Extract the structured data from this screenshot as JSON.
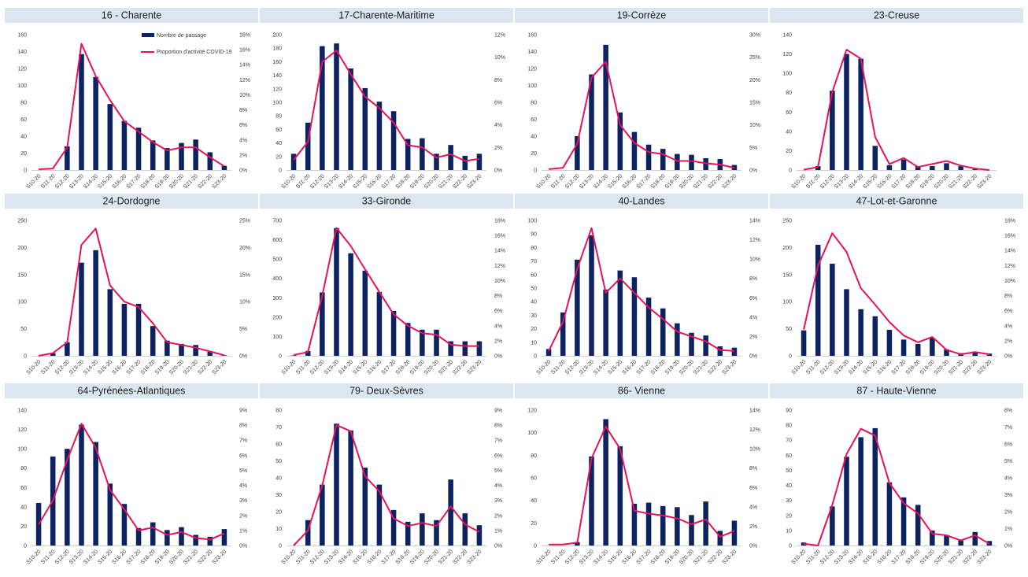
{
  "legend": {
    "bar_label": "Nombre de passage",
    "line_label": "Proportion d'activité COVID-19"
  },
  "colors": {
    "bar": "#0d2260",
    "line": "#e8115b",
    "title_bg": "#dce6f0"
  },
  "chart_data": [
    {
      "type": "bar",
      "title": "16 - Charente",
      "categories": [
        "S10-20",
        "S11-20",
        "S12-20",
        "S13-20",
        "S14-20",
        "S15-20",
        "S16-20",
        "S17-20",
        "S18-20",
        "S19-20",
        "S20-20",
        "S21-20",
        "S22-20",
        "S23-20"
      ],
      "series": [
        {
          "name": "Nombre de passage",
          "type": "bar",
          "axis": "left",
          "values": [
            0,
            0,
            28,
            137,
            110,
            78,
            58,
            50,
            35,
            26,
            32,
            36,
            21,
            5
          ]
        },
        {
          "name": "Proportion d'activité COVID-19",
          "type": "line",
          "axis": "right",
          "values": [
            0.1,
            0.2,
            3.0,
            16.8,
            12.5,
            9.3,
            6.5,
            5.1,
            3.7,
            2.6,
            3.0,
            3.0,
            1.7,
            0.5
          ]
        }
      ],
      "left_axis": {
        "min": 0,
        "max": 160,
        "ticks": [
          0,
          20,
          40,
          60,
          80,
          100,
          120,
          140,
          160
        ]
      },
      "right_axis": {
        "min": 0,
        "max": 18,
        "ticks": [
          0,
          2,
          4,
          6,
          8,
          10,
          12,
          14,
          16,
          18
        ],
        "suffix": "%"
      },
      "show_legend": true
    },
    {
      "type": "bar",
      "title": "17-Charente-Maritime",
      "categories": [
        "S10-20",
        "S11-20",
        "S12-20",
        "S13-20",
        "S14-20",
        "S15-20",
        "S16-20",
        "S17-20",
        "S18-20",
        "S19-20",
        "S20-20",
        "S21-20",
        "S22-20",
        "S23-20"
      ],
      "series": [
        {
          "name": "Nombre de passage",
          "type": "bar",
          "axis": "left",
          "values": [
            24,
            70,
            183,
            187,
            150,
            121,
            101,
            87,
            46,
            47,
            24,
            37,
            21,
            24
          ]
        },
        {
          "name": "Proportion d'activité COVID-19",
          "type": "line",
          "axis": "right",
          "values": [
            0.9,
            2.5,
            9.6,
            10.6,
            8.5,
            6.5,
            5.5,
            4.2,
            2.2,
            2.0,
            1.1,
            1.4,
            0.8,
            1.0
          ]
        }
      ],
      "left_axis": {
        "min": 0,
        "max": 200,
        "ticks": [
          0,
          20,
          40,
          60,
          80,
          100,
          120,
          140,
          160,
          180,
          200
        ]
      },
      "right_axis": {
        "min": 0,
        "max": 12,
        "ticks": [
          0,
          2,
          4,
          6,
          8,
          10,
          12
        ],
        "suffix": "%"
      },
      "show_legend": false
    },
    {
      "type": "bar",
      "title": "19-Corrèze",
      "categories": [
        "S10-20",
        "S11-20",
        "S12-20",
        "S13-20",
        "S14-20",
        "S15-20",
        "S16-20",
        "S17-20",
        "S18-20",
        "S19-20",
        "S20-20",
        "S21-20",
        "S22-20",
        "S23-20"
      ],
      "series": [
        {
          "name": "Nombre de passage",
          "type": "bar",
          "axis": "left",
          "values": [
            0,
            0,
            40,
            113,
            148,
            68,
            45,
            30,
            25,
            19,
            18,
            14,
            13,
            6
          ]
        },
        {
          "name": "Proportion d'activité COVID-19",
          "type": "line",
          "axis": "right",
          "values": [
            0.2,
            0.5,
            5.8,
            20.5,
            24.0,
            10.0,
            6.0,
            4.0,
            3.5,
            2.0,
            2.0,
            1.5,
            1.2,
            0.5
          ]
        }
      ],
      "left_axis": {
        "min": 0,
        "max": 160,
        "ticks": [
          0,
          20,
          40,
          60,
          80,
          100,
          120,
          140,
          160
        ]
      },
      "right_axis": {
        "min": 0,
        "max": 30,
        "ticks": [
          0,
          5,
          10,
          15,
          20,
          25,
          30
        ],
        "suffix": "%"
      },
      "show_legend": false
    },
    {
      "type": "bar",
      "title": "23-Creuse",
      "categories": [
        "S10-20",
        "S11-20",
        "S12-20",
        "S13-20",
        "S14-20",
        "S15-20",
        "S16-20",
        "S17-20",
        "S18-20",
        "S19-20",
        "S20-20",
        "S21-20",
        "S22-20",
        "S23-20"
      ],
      "series": [
        {
          "name": "Nombre de passage",
          "type": "bar",
          "axis": "left",
          "values": [
            0,
            4,
            82,
            120,
            115,
            25,
            5,
            11,
            4,
            4,
            7,
            4,
            1,
            0
          ]
        },
        {
          "name": "Proportion d'activité COVID-19",
          "type": "line",
          "axis": "right",
          "values": [
            0.1,
            1.0,
            26.0,
            40.0,
            37.0,
            11.0,
            2.0,
            4.0,
            1.0,
            2.0,
            3.0,
            1.5,
            0.5,
            0.0
          ]
        }
      ],
      "left_axis": {
        "min": 0,
        "max": 140,
        "ticks": [
          0,
          20,
          40,
          60,
          80,
          100,
          120,
          140
        ]
      },
      "right_axis": {
        "min": 0,
        "max": 45,
        "ticks": [],
        "suffix": "%"
      },
      "show_legend": false
    },
    {
      "type": "bar",
      "title": "24-Dordogne",
      "categories": [
        "S10-20",
        "S11-20",
        "S12-20",
        "S13-20",
        "S14-20",
        "S15-20",
        "S16-20",
        "S17-20",
        "S18-20",
        "S19-20",
        "S20-20",
        "S21-20",
        "S22-20",
        "S23-20"
      ],
      "series": [
        {
          "name": "Nombre de passage",
          "type": "bar",
          "axis": "left",
          "values": [
            0,
            5,
            25,
            172,
            195,
            123,
            96,
            96,
            55,
            28,
            22,
            20,
            8,
            1
          ]
        },
        {
          "name": "Proportion d'activité COVID-19",
          "type": "line",
          "axis": "right",
          "values": [
            0.0,
            0.5,
            2.5,
            20.5,
            23.5,
            13.0,
            10.0,
            9.0,
            6.0,
            2.5,
            2.0,
            1.5,
            0.8,
            0.1
          ]
        }
      ],
      "left_axis": {
        "min": 0,
        "max": 250,
        "ticks": [
          0,
          50,
          100,
          150,
          200,
          250
        ]
      },
      "right_axis": {
        "min": 0,
        "max": 25,
        "ticks": [
          0,
          5,
          10,
          15,
          20,
          25
        ],
        "suffix": "%"
      },
      "show_legend": false
    },
    {
      "type": "bar",
      "title": "33-Gironde",
      "categories": [
        "S10-20",
        "S11-20",
        "S12-20",
        "S13-20",
        "S14-20",
        "S15-20",
        "S16-20",
        "S17-20",
        "S18-20",
        "S19-20",
        "S20-20",
        "S21-20",
        "S22-20",
        "S23-20"
      ],
      "series": [
        {
          "name": "Nombre de passage",
          "type": "bar",
          "axis": "left",
          "values": [
            2,
            25,
            328,
            660,
            530,
            440,
            330,
            232,
            170,
            135,
            135,
            75,
            75,
            75
          ]
        },
        {
          "name": "Proportion d'activité COVID-19",
          "type": "line",
          "axis": "right",
          "values": [
            0.1,
            0.5,
            8.0,
            17.0,
            14.6,
            11.5,
            8.5,
            5.5,
            4.0,
            3.0,
            2.8,
            1.5,
            1.3,
            1.3
          ]
        }
      ],
      "left_axis": {
        "min": 0,
        "max": 700,
        "ticks": [
          0,
          100,
          200,
          300,
          400,
          500,
          600,
          700
        ]
      },
      "right_axis": {
        "min": 0,
        "max": 18,
        "ticks": [
          0,
          2,
          4,
          6,
          8,
          10,
          12,
          14,
          16,
          18
        ],
        "suffix": "%"
      },
      "show_legend": false
    },
    {
      "type": "bar",
      "title": "40-Landes",
      "categories": [
        "S10-20",
        "S11-20",
        "S12-20",
        "S13-20",
        "S14-20",
        "S15-20",
        "S16-20",
        "S17-20",
        "S18-20",
        "S19-20",
        "S20-20",
        "S21-20",
        "S22-20",
        "S23-20"
      ],
      "series": [
        {
          "name": "Nombre de passage",
          "type": "bar",
          "axis": "left",
          "values": [
            5,
            32,
            71,
            89,
            49,
            63,
            58,
            43,
            35,
            24,
            17,
            15,
            7,
            6
          ]
        },
        {
          "name": "Proportion d'activité COVID-19",
          "type": "line",
          "axis": "right",
          "values": [
            0.5,
            3.5,
            9.0,
            13.2,
            6.5,
            8.0,
            6.5,
            5.0,
            3.8,
            2.5,
            2.0,
            1.5,
            0.6,
            0.5
          ]
        }
      ],
      "left_axis": {
        "min": 0,
        "max": 100,
        "ticks": [
          0,
          10,
          20,
          30,
          40,
          50,
          60,
          70,
          80,
          90,
          100
        ]
      },
      "right_axis": {
        "min": 0,
        "max": 14,
        "ticks": [
          0,
          2,
          4,
          6,
          8,
          10,
          12,
          14
        ],
        "suffix": "%"
      },
      "show_legend": false
    },
    {
      "type": "bar",
      "title": "47-Lot-et-Garonne",
      "categories": [
        "S10-20",
        "S11-20",
        "S12-20",
        "S13-20",
        "S14-20",
        "S15-20",
        "S16-20",
        "S17-20",
        "S18-20",
        "S19-20",
        "S20-20",
        "S21-20",
        "S22-20",
        "S23-20"
      ],
      "series": [
        {
          "name": "Nombre de passage",
          "type": "bar",
          "axis": "left",
          "values": [
            47,
            205,
            170,
            123,
            86,
            73,
            48,
            30,
            22,
            33,
            12,
            5,
            6,
            4
          ]
        },
        {
          "name": "Proportion d'activité COVID-19",
          "type": "line",
          "axis": "right",
          "values": [
            3.5,
            12.0,
            16.3,
            13.8,
            9.0,
            6.8,
            4.5,
            2.7,
            1.8,
            2.5,
            0.8,
            0.2,
            0.5,
            0.2
          ]
        }
      ],
      "left_axis": {
        "min": 0,
        "max": 250,
        "ticks": [
          0,
          50,
          100,
          150,
          200,
          250
        ]
      },
      "right_axis": {
        "min": 0,
        "max": 18,
        "ticks": [
          0,
          2,
          4,
          6,
          8,
          10,
          12,
          14,
          16,
          18
        ],
        "suffix": "%"
      },
      "show_legend": false
    },
    {
      "type": "bar",
      "title": "64-Pyrénées-Atlantiques",
      "categories": [
        "S10-20",
        "S11-20",
        "S12-20",
        "S13-20",
        "S14-20",
        "S15-20",
        "S16-20",
        "S17-20",
        "S18-20",
        "S19-20",
        "S20-20",
        "S21-20",
        "S22-20",
        "S23-20"
      ],
      "series": [
        {
          "name": "Nombre de passage",
          "type": "bar",
          "axis": "left",
          "values": [
            44,
            92,
            100,
            125,
            107,
            64,
            43,
            18,
            24,
            16,
            19,
            11,
            9,
            17
          ]
        },
        {
          "name": "Proportion d'activité COVID-19",
          "type": "line",
          "axis": "right",
          "values": [
            1.4,
            3.0,
            5.7,
            8.1,
            6.5,
            3.7,
            2.4,
            1.0,
            1.2,
            0.7,
            0.9,
            0.5,
            0.4,
            0.8
          ]
        }
      ],
      "left_axis": {
        "min": 0,
        "max": 140,
        "ticks": [
          0,
          20,
          40,
          60,
          80,
          100,
          120,
          140
        ]
      },
      "right_axis": {
        "min": 0,
        "max": 9,
        "ticks": [
          0,
          1,
          2,
          3,
          4,
          5,
          6,
          7,
          8,
          9
        ],
        "suffix": "%"
      },
      "show_legend": false
    },
    {
      "type": "bar",
      "title": "79- Deux-Sèvres",
      "categories": [
        "S10-20",
        "S11-20",
        "S12-20",
        "S13-20",
        "S14-20",
        "S15-20",
        "S16-20",
        "S17-20",
        "S18-20",
        "S19-20",
        "S20-20",
        "S21-20",
        "S22-20",
        "S23-20"
      ],
      "series": [
        {
          "name": "Nombre de passage",
          "type": "bar",
          "axis": "left",
          "values": [
            0,
            15,
            36,
            72,
            68,
            46,
            36,
            21,
            14,
            19,
            15,
            39,
            19,
            12
          ]
        },
        {
          "name": "Proportion d'activité COVID-19",
          "type": "line",
          "axis": "right",
          "values": [
            0.0,
            1.0,
            4.0,
            8.0,
            7.6,
            4.6,
            3.6,
            1.8,
            1.3,
            1.5,
            1.3,
            2.6,
            1.4,
            0.9
          ]
        }
      ],
      "left_axis": {
        "min": 0,
        "max": 80,
        "ticks": [
          0,
          10,
          20,
          30,
          40,
          50,
          60,
          70,
          80
        ]
      },
      "right_axis": {
        "min": 0,
        "max": 9,
        "ticks": [
          0,
          1,
          2,
          3,
          4,
          5,
          6,
          7,
          8,
          9
        ],
        "suffix": "%"
      },
      "show_legend": false
    },
    {
      "type": "bar",
      "title": "86- Vienne",
      "categories": [
        "S10-20",
        "S11-20",
        "S12-20",
        "S13-20",
        "S14-20",
        "S15-20",
        "S16-20",
        "S17-20",
        "S18-20",
        "S19-20",
        "S20-20",
        "S21-20",
        "S22-20",
        "S23-20"
      ],
      "series": [
        {
          "name": "Nombre de passage",
          "type": "bar",
          "axis": "left",
          "values": [
            0,
            0,
            3,
            79,
            112,
            88,
            37,
            38,
            35,
            34,
            27,
            39,
            13,
            22
          ]
        },
        {
          "name": "Proportion d'activité COVID-19",
          "type": "line",
          "axis": "right",
          "values": [
            0.1,
            0.1,
            0.3,
            9.0,
            12.3,
            10.0,
            3.6,
            3.3,
            3.1,
            2.8,
            2.2,
            2.7,
            0.9,
            1.5
          ]
        }
      ],
      "left_axis": {
        "min": 0,
        "max": 120,
        "ticks": [
          0,
          20,
          40,
          60,
          80,
          100,
          120
        ]
      },
      "right_axis": {
        "min": 0,
        "max": 14,
        "ticks": [
          0,
          2,
          4,
          6,
          8,
          10,
          12,
          14
        ],
        "suffix": "%"
      },
      "show_legend": false
    },
    {
      "type": "bar",
      "title": "87 - Haute-Vienne",
      "categories": [
        "S10-20",
        "S11-20",
        "S12-20",
        "S13-20",
        "S14-20",
        "S15-20",
        "S16-20",
        "S17-20",
        "S18-20",
        "S19-20",
        "S20-20",
        "S21-20",
        "S22-20",
        "S23-20"
      ],
      "series": [
        {
          "name": "Nombre de passage",
          "type": "bar",
          "axis": "left",
          "values": [
            2,
            0,
            26,
            59,
            72,
            78,
            42,
            32,
            27,
            10,
            7,
            4,
            9,
            3
          ]
        },
        {
          "name": "Proportion d'activité COVID-19",
          "type": "line",
          "axis": "right",
          "values": [
            0.1,
            0.0,
            2.4,
            5.4,
            6.9,
            6.5,
            3.7,
            2.5,
            1.9,
            0.7,
            0.6,
            0.3,
            0.6,
            0.1
          ]
        }
      ],
      "left_axis": {
        "min": 0,
        "max": 90,
        "ticks": [
          0,
          10,
          20,
          30,
          40,
          50,
          60,
          70,
          80,
          90
        ]
      },
      "right_axis": {
        "min": 0,
        "max": 8,
        "ticks": [
          0,
          1,
          2,
          3,
          4,
          5,
          6,
          7,
          8
        ],
        "suffix": "%"
      },
      "show_legend": false
    }
  ]
}
